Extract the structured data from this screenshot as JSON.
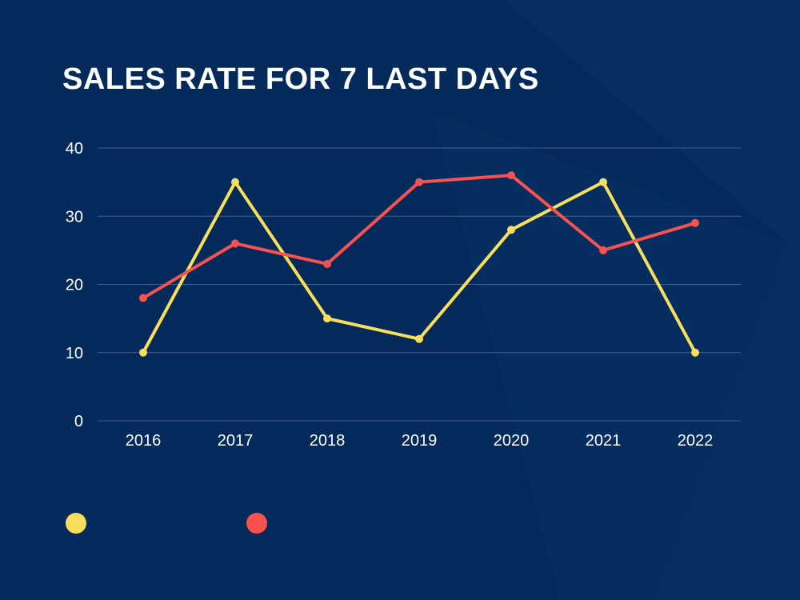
{
  "colors": {
    "background": "#042a5c",
    "gridline": "#3f5f8c",
    "text": "#ffffff",
    "series_yellow": "#f8df5b",
    "series_red": "#f7524f"
  },
  "chart_data": {
    "type": "line",
    "title": "SALES RATE FOR 7 LAST DAYS",
    "xlabel": "",
    "ylabel": "",
    "ylim": [
      0,
      40
    ],
    "yticks": [
      0,
      10,
      20,
      30,
      40
    ],
    "categories": [
      "2016",
      "2017",
      "2018",
      "2019",
      "2020",
      "2021",
      "2022"
    ],
    "series": [
      {
        "name": "",
        "color": "#f8df5b",
        "values": [
          10,
          35,
          15,
          12,
          28,
          35,
          10
        ]
      },
      {
        "name": "",
        "color": "#f7524f",
        "values": [
          18,
          26,
          23,
          35,
          36,
          25,
          29
        ]
      }
    ],
    "grid": true,
    "legend": "bottom-left"
  }
}
